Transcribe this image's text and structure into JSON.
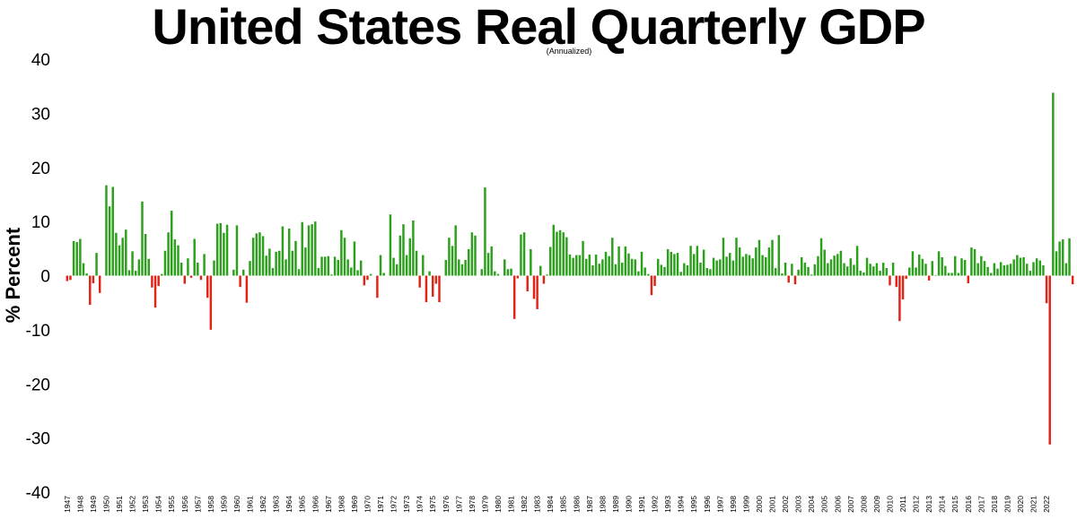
{
  "chart_data": {
    "type": "bar",
    "title": "United States Real Quarterly GDP",
    "subtitle": "(Annualized)",
    "xlabel": "",
    "ylabel": "% Percent",
    "ylim": [
      -40,
      40
    ],
    "yticks": [
      40,
      30,
      20,
      10,
      0,
      -10,
      -20,
      -30,
      -40
    ],
    "grid": false,
    "legend": "none",
    "colors": {
      "positive": "#2ca01c",
      "negative": "#e02418"
    },
    "x_tick_labels": [
      "1947",
      "1948",
      "1949",
      "1950",
      "1951",
      "1952",
      "1953",
      "1954",
      "1955",
      "1956",
      "1957",
      "1958",
      "1959",
      "1960",
      "1961",
      "1962",
      "1963",
      "1964",
      "1965",
      "1966",
      "1967",
      "1968",
      "1969",
      "1970",
      "1971",
      "1972",
      "1973",
      "1974",
      "1975",
      "1976",
      "1977",
      "1978",
      "1979",
      "1980",
      "1981",
      "1982",
      "1983",
      "1984",
      "1985",
      "1986",
      "1987",
      "1988",
      "1989",
      "1990",
      "1991",
      "1992",
      "1993",
      "1994",
      "1995",
      "1996",
      "1997",
      "1998",
      "1999",
      "2000",
      "2001",
      "2002",
      "2003",
      "2004",
      "2005",
      "2006",
      "2007",
      "2008",
      "2009",
      "2010",
      "2011",
      "2012",
      "2013",
      "2014",
      "2015",
      "2016",
      "2017",
      "2018",
      "2019",
      "2020",
      "2021",
      "2022"
    ],
    "quarters_start": "1947 Q1",
    "values": [
      -1.0,
      -0.8,
      6.4,
      6.2,
      6.8,
      2.3,
      0.4,
      -5.4,
      -1.4,
      4.2,
      -3.2,
      0.0,
      16.7,
      12.8,
      16.4,
      7.9,
      5.6,
      7.0,
      8.5,
      1.0,
      4.5,
      0.9,
      3.0,
      13.7,
      7.7,
      3.1,
      -2.2,
      -5.9,
      -1.9,
      0.3,
      4.6,
      8.0,
      12.0,
      6.7,
      5.6,
      2.4,
      -1.5,
      3.2,
      -0.4,
      6.8,
      2.4,
      -0.8,
      4.0,
      -4.1,
      -10.0,
      2.8,
      9.6,
      9.7,
      7.9,
      9.4,
      0.0,
      1.1,
      9.3,
      -2.1,
      1.1,
      -5.0,
      2.7,
      7.0,
      7.8,
      8.0,
      7.3,
      3.7,
      5.0,
      1.4,
      4.4,
      4.6,
      9.1,
      3.0,
      8.7,
      4.6,
      6.4,
      1.2,
      9.9,
      5.2,
      9.3,
      9.5,
      10.0,
      1.4,
      3.5,
      3.5,
      3.6,
      0.2,
      3.5,
      2.9,
      8.4,
      7.0,
      3.0,
      1.5,
      6.3,
      1.0,
      2.8,
      -1.8,
      -0.8,
      0.3,
      0.0,
      -4.1,
      3.8,
      0.5,
      0.0,
      11.3,
      3.3,
      2.1,
      7.4,
      9.5,
      3.8,
      6.9,
      10.2,
      4.6,
      -2.2,
      3.8,
      -4.9,
      0.8,
      -3.9,
      -1.5,
      -4.9,
      0.0,
      2.9,
      7.0,
      5.5,
      9.3,
      3.0,
      2.1,
      2.9,
      4.9,
      8.0,
      7.4,
      0.0,
      1.2,
      16.3,
      4.2,
      5.4,
      0.8,
      0.3,
      0.0,
      3.0,
      1.2,
      1.3,
      -8.0,
      -0.5,
      7.6,
      8.0,
      -2.9,
      4.9,
      -4.3,
      -6.2,
      1.8,
      -1.5,
      0.2,
      5.3,
      9.4,
      8.1,
      8.4,
      8.0,
      7.1,
      3.9,
      3.3,
      3.8,
      3.8,
      6.4,
      3.1,
      3.9,
      1.9,
      3.9,
      2.2,
      3.0,
      4.4,
      3.6,
      7.0,
      2.1,
      5.4,
      2.4,
      5.4,
      4.1,
      3.1,
      3.0,
      0.8,
      4.4,
      1.5,
      0.3,
      -3.6,
      -1.9,
      3.1,
      2.0,
      1.6,
      4.9,
      4.4,
      4.0,
      4.2,
      0.7,
      2.3,
      1.9,
      5.5,
      4.0,
      5.5,
      2.4,
      4.8,
      1.4,
      1.2,
      3.3,
      2.8,
      3.0,
      7.0,
      3.5,
      4.2,
      2.8,
      7.0,
      5.2,
      3.5,
      4.0,
      3.8,
      3.2,
      5.2,
      6.6,
      3.8,
      3.4,
      5.2,
      6.6,
      1.4,
      7.5,
      0.4,
      2.4,
      -1.3,
      2.2,
      -1.6,
      1.1,
      3.4,
      2.4,
      1.6,
      0.2,
      2.1,
      3.6,
      6.9,
      4.8,
      2.3,
      3.0,
      3.7,
      4.0,
      4.6,
      2.3,
      1.7,
      3.2,
      2.0,
      5.5,
      0.9,
      0.6,
      3.3,
      2.2,
      1.7,
      2.3,
      0.9,
      2.4,
      1.4,
      -1.8,
      2.4,
      -2.1,
      -8.4,
      -4.4,
      -0.6,
      1.5,
      4.5,
      1.5,
      3.9,
      3.1,
      2.2,
      -0.9,
      2.7,
      0.1,
      4.5,
      3.4,
      1.8,
      0.5,
      0.5,
      3.6,
      0.5,
      3.2,
      2.9,
      -1.4,
      5.2,
      4.9,
      2.3,
      3.6,
      2.7,
      1.6,
      0.5,
      2.3,
      1.3,
      2.5,
      1.9,
      2.0,
      2.2,
      3.0,
      3.8,
      3.3,
      3.4,
      2.2,
      0.9,
      2.5,
      3.2,
      2.8,
      1.9,
      -5.1,
      -31.2,
      33.8,
      4.5,
      6.3,
      6.7,
      2.3,
      6.9,
      -1.6
    ]
  }
}
